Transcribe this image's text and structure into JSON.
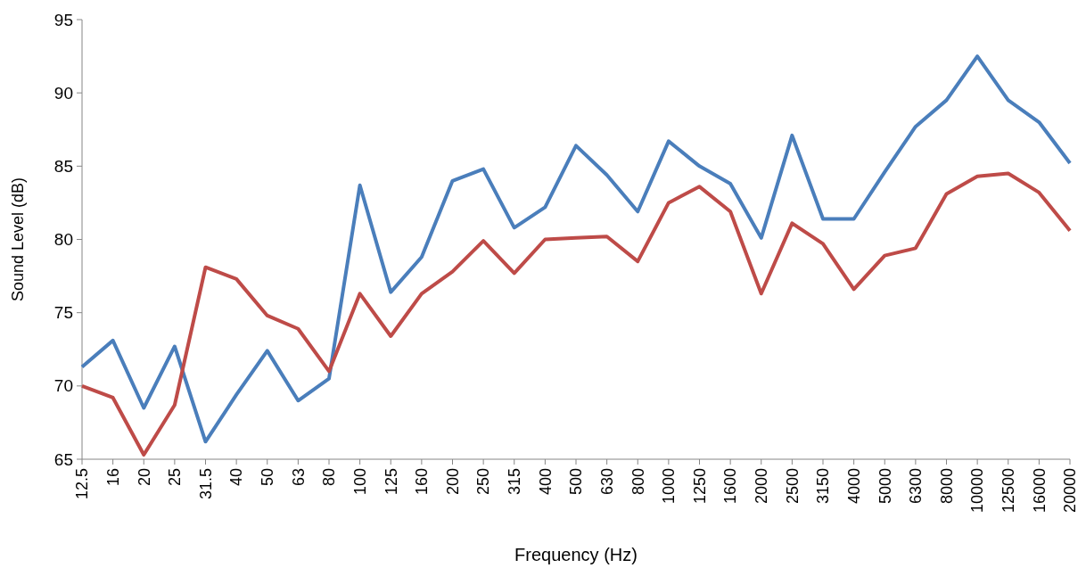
{
  "chart_data": {
    "type": "line",
    "xlabel": "Frequency (Hz)",
    "ylabel": "Sound Level (dB)",
    "categories": [
      "12.5",
      "16",
      "20",
      "25",
      "31.5",
      "40",
      "50",
      "63",
      "80",
      "100",
      "125",
      "160",
      "200",
      "250",
      "315",
      "400",
      "500",
      "630",
      "800",
      "1000",
      "1250",
      "1600",
      "2000",
      "2500",
      "3150",
      "4000",
      "5000",
      "6300",
      "8000",
      "10000",
      "12500",
      "16000",
      "20000"
    ],
    "series": [
      {
        "color": "#4a7ebb",
        "values": [
          71.3,
          73.1,
          68.5,
          72.7,
          66.2,
          69.4,
          72.4,
          69.0,
          70.5,
          83.7,
          76.4,
          78.8,
          84.0,
          84.8,
          80.8,
          82.2,
          86.4,
          84.4,
          81.9,
          86.7,
          85.0,
          83.8,
          80.1,
          87.1,
          81.4,
          81.4,
          84.6,
          87.7,
          89.5,
          92.5,
          89.5,
          88.0,
          85.2
        ]
      },
      {
        "color": "#be4b48",
        "values": [
          70.0,
          69.2,
          65.3,
          68.7,
          78.1,
          77.3,
          74.8,
          73.9,
          71.0,
          76.3,
          73.4,
          76.3,
          77.8,
          79.9,
          77.7,
          80.0,
          80.1,
          80.2,
          78.5,
          82.5,
          83.6,
          81.9,
          76.3,
          81.1,
          79.7,
          76.6,
          78.9,
          79.4,
          83.1,
          84.3,
          84.5,
          83.2,
          80.6
        ]
      }
    ],
    "ylim": [
      65,
      95
    ],
    "yticks": [
      65,
      70,
      75,
      80,
      85,
      90,
      95
    ],
    "grid": false,
    "marker": "none",
    "line_style": "solid"
  }
}
